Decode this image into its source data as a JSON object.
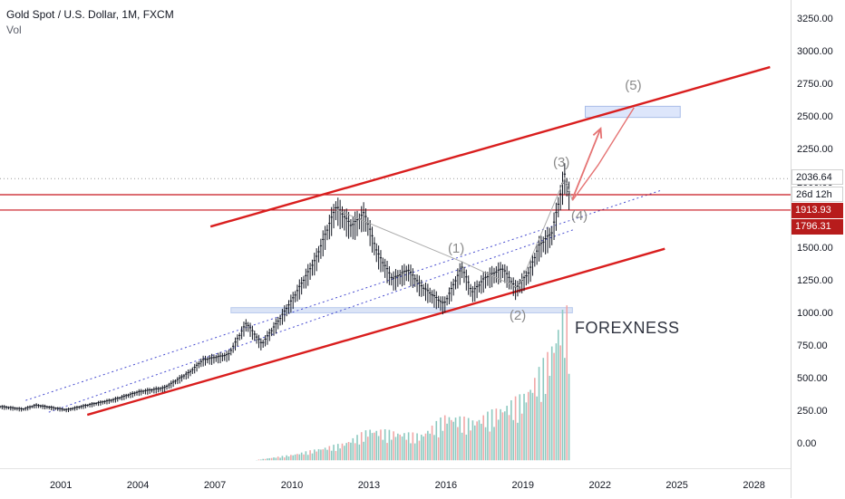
{
  "header": {
    "title": "Gold Spot / U.S. Dollar, 1M, FXCM",
    "indicator": "Vol"
  },
  "watermark": "FOREXNESS",
  "colors": {
    "channel": "#d91e1e",
    "level": "#c8161d",
    "wave_path": "#aaaaaa",
    "projection": "#e57373",
    "trend_dotted": "#4a4fd1",
    "support_zone": "#b8c9ee",
    "target_zone": "#dde6fb",
    "candle": "#131722",
    "vol_up": "#8cc9c0",
    "vol_down": "#f1a7a7"
  },
  "chart_data": {
    "type": "candlestick",
    "symbol": "XAUUSD",
    "timeframe": "1M",
    "source": "FXCM",
    "x_ticks": [
      "2001",
      "2004",
      "2007",
      "2010",
      "2013",
      "2016",
      "2019",
      "2022",
      "2025",
      "2028"
    ],
    "y_ticks": [
      "3250.00",
      "3000.00",
      "2750.00",
      "2500.00",
      "2250.00",
      "2000.00",
      "1750.00",
      "1500.00",
      "1250.00",
      "1000.00",
      "750.00",
      "500.00",
      "250.00",
      "0.00"
    ],
    "ylim": [
      -130,
      3320
    ],
    "xlim": [
      1998.6,
      2029.4
    ],
    "price_series": [
      {
        "x": 1998.6,
        "y": 290
      },
      {
        "x": 1999.5,
        "y": 270
      },
      {
        "x": 2000.0,
        "y": 300
      },
      {
        "x": 2001.2,
        "y": 265
      },
      {
        "x": 2002.0,
        "y": 300
      },
      {
        "x": 2003.0,
        "y": 340
      },
      {
        "x": 2004.0,
        "y": 400
      },
      {
        "x": 2005.0,
        "y": 430
      },
      {
        "x": 2006.0,
        "y": 550
      },
      {
        "x": 2006.5,
        "y": 640
      },
      {
        "x": 2007.5,
        "y": 680
      },
      {
        "x": 2008.2,
        "y": 920
      },
      {
        "x": 2008.8,
        "y": 760
      },
      {
        "x": 2009.5,
        "y": 950
      },
      {
        "x": 2010.0,
        "y": 1100
      },
      {
        "x": 2010.9,
        "y": 1400
      },
      {
        "x": 2011.7,
        "y": 1800
      },
      {
        "x": 2012.3,
        "y": 1650
      },
      {
        "x": 2012.8,
        "y": 1750
      },
      {
        "x": 2013.3,
        "y": 1450
      },
      {
        "x": 2013.9,
        "y": 1250
      },
      {
        "x": 2014.5,
        "y": 1320
      },
      {
        "x": 2015.0,
        "y": 1200
      },
      {
        "x": 2015.9,
        "y": 1060
      },
      {
        "x": 2016.6,
        "y": 1340
      },
      {
        "x": 2017.0,
        "y": 1150
      },
      {
        "x": 2017.5,
        "y": 1260
      },
      {
        "x": 2018.2,
        "y": 1330
      },
      {
        "x": 2018.7,
        "y": 1180
      },
      {
        "x": 2019.2,
        "y": 1300
      },
      {
        "x": 2019.6,
        "y": 1500
      },
      {
        "x": 2020.1,
        "y": 1600
      },
      {
        "x": 2020.6,
        "y": 2036
      },
      {
        "x": 2020.8,
        "y": 1880
      }
    ],
    "volume_series": [
      {
        "x": 2010.0,
        "y": 20
      },
      {
        "x": 2011.0,
        "y": 40
      },
      {
        "x": 2012.0,
        "y": 60
      },
      {
        "x": 2013.0,
        "y": 110
      },
      {
        "x": 2014.0,
        "y": 100
      },
      {
        "x": 2015.0,
        "y": 90
      },
      {
        "x": 2016.0,
        "y": 160
      },
      {
        "x": 2017.0,
        "y": 140
      },
      {
        "x": 2018.0,
        "y": 180
      },
      {
        "x": 2019.0,
        "y": 230
      },
      {
        "x": 2019.5,
        "y": 300
      },
      {
        "x": 2020.0,
        "y": 380
      },
      {
        "x": 2020.5,
        "y": 520
      }
    ],
    "price_labels": [
      {
        "text": "2036.64",
        "y": 2036.64,
        "style": "last"
      },
      {
        "text": "26d 12h",
        "y": 1935,
        "style": "countdown"
      },
      {
        "text": "1913.93",
        "y": 1913.93,
        "style": "level"
      },
      {
        "text": "1796.31",
        "y": 1796.31,
        "style": "level"
      }
    ],
    "horizontal_levels": [
      1913.93,
      1796.31
    ],
    "channel_upper": [
      [
        2006.8,
        1670
      ],
      [
        2028.6,
        2890
      ]
    ],
    "channel_lower": [
      [
        2002.0,
        230
      ],
      [
        2024.5,
        1500
      ]
    ],
    "trend_dotted": [
      [
        [
          1999.6,
          340
        ],
        [
          2024.4,
          1950
        ]
      ],
      [
        [
          2000.5,
          250
        ],
        [
          2021.0,
          1650
        ]
      ]
    ],
    "support_zone": {
      "x1": 2007.6,
      "x2": 2020.9,
      "y1": 1010,
      "y2": 1050
    },
    "target_zone": {
      "x1": 2021.4,
      "x2": 2025.1,
      "y1": 2505,
      "y2": 2590
    },
    "wave_path": [
      [
        2011.7,
        1800
      ],
      [
        2016.6,
        1400
      ],
      [
        2018.8,
        1200
      ],
      [
        2020.6,
        2040
      ],
      [
        2020.9,
        1870
      ]
    ],
    "projection_path": [
      [
        2020.9,
        1870
      ],
      [
        2021.9,
        2140
      ],
      [
        2023.3,
        2580
      ]
    ],
    "projection_arrow": [
      [
        2020.9,
        1880
      ],
      [
        2022.0,
        2420
      ]
    ],
    "wave_labels": [
      {
        "text": "(1)",
        "x": 2016.4,
        "y": 1490
      },
      {
        "text": "(2)",
        "x": 2018.8,
        "y": 980
      },
      {
        "text": "(3)",
        "x": 2020.5,
        "y": 2150
      },
      {
        "text": "(4)",
        "x": 2021.2,
        "y": 1740
      },
      {
        "text": "(5)",
        "x": 2023.3,
        "y": 2740
      }
    ]
  }
}
